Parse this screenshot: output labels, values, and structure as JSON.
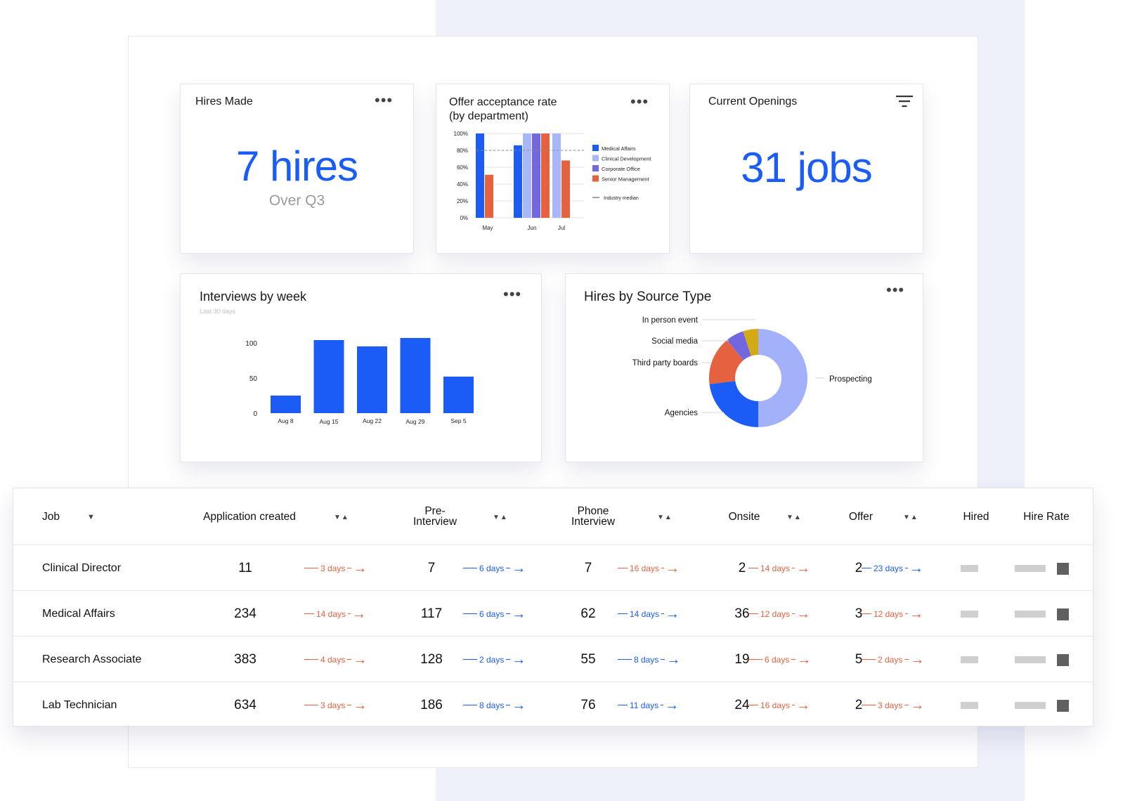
{
  "hires_card": {
    "title": "Hires Made",
    "menu_icon": "more-horizontal-icon",
    "value": "7 hires",
    "caption": "Over Q3"
  },
  "offer_card": {
    "title_line1": "Offer acceptance rate",
    "title_line2": "(by department)",
    "menu_icon": "more-horizontal-icon"
  },
  "openings_card": {
    "title": "Current Openings",
    "filter_icon": "filter-icon",
    "value": "31 jobs"
  },
  "interviews_card": {
    "title": "Interviews by week",
    "subtitle": "Last 30 days",
    "menu_icon": "more-horizontal-icon"
  },
  "source_card": {
    "title": "Hires by Source Type",
    "menu_icon": "more-horizontal-icon"
  },
  "chart_data": [
    {
      "type": "bar",
      "categories": [
        "May",
        "Jun",
        "Jul"
      ],
      "series": [
        {
          "name": "Medical Affairs",
          "color": "#1a5cf5",
          "values": [
            100,
            86,
            null
          ]
        },
        {
          "name": "Clinical Development",
          "color": "#a9b6f7",
          "values": [
            null,
            100,
            100
          ]
        },
        {
          "name": "Corporate Office",
          "color": "#7367e0",
          "values": [
            null,
            100,
            null
          ]
        },
        {
          "name": "Senior Management",
          "color": "#e4623f",
          "values": [
            51,
            100,
            68
          ]
        }
      ],
      "reference_line": {
        "name": "Industry median",
        "value": 80
      },
      "ylim": [
        0,
        100
      ],
      "yticks": [
        "0%",
        "20%",
        "40%",
        "60%",
        "80%",
        "100%"
      ],
      "legend": "right"
    },
    {
      "type": "bar",
      "categories": [
        "Aug 8",
        "Aug 15",
        "Aug 22",
        "Aug 29",
        "Sep 5"
      ],
      "values": [
        25,
        104,
        95,
        107,
        52
      ],
      "color": "#1a5cf5",
      "ylim": [
        0,
        110
      ],
      "yticks": [
        "0",
        "50",
        "100"
      ]
    },
    {
      "type": "pie",
      "donut": true,
      "slices": [
        {
          "label": "Prospecting",
          "value": 50,
          "color": "#a3b1fb"
        },
        {
          "label": "Agencies",
          "value": 23,
          "color": "#1a5cf5"
        },
        {
          "label": "Third party boards",
          "value": 16,
          "color": "#e4623f"
        },
        {
          "label": "Social media",
          "value": 6,
          "color": "#7367e0"
        },
        {
          "label": "In person event",
          "value": 5,
          "color": "#d4aa14"
        }
      ]
    }
  ],
  "table": {
    "headers": {
      "job": "Job",
      "app": "Application created",
      "pre1": "Pre-",
      "pre2": "Interview",
      "phone1": "Phone",
      "phone2": "Interview",
      "onsite": "Onsite",
      "offer": "Offer",
      "hired": "Hired",
      "hire_rate": "Hire Rate"
    },
    "rows": [
      {
        "job": "Clinical Director",
        "app": "11",
        "d1": "3 days",
        "pre": "7",
        "d2": "6 days",
        "phone": "7",
        "d3": "16 days",
        "onsite": "2",
        "d4": "14 days",
        "offer": "2",
        "d5": "23 days"
      },
      {
        "job": "Medical Affairs",
        "app": "234",
        "d1": "14 days",
        "pre": "117",
        "d2": "6 days",
        "phone": "62",
        "d3": "14 days",
        "onsite": "36",
        "d4": "12 days",
        "offer": "3",
        "d5": "12 days"
      },
      {
        "job": "Research Associate",
        "app": "383",
        "d1": "4 days",
        "pre": "128",
        "d2": "2 days",
        "phone": "55",
        "d3": "8 days",
        "onsite": "19",
        "d4": "6 days",
        "offer": "5",
        "d5": "2 days"
      },
      {
        "job": "Lab Technician",
        "app": "634",
        "d1": "3 days",
        "pre": "186",
        "d2": "8 days",
        "phone": "76",
        "d3": "11 days",
        "onsite": "24",
        "d4": "16 days",
        "offer": "2",
        "d5": "3 days"
      }
    ],
    "duration_colors": {
      "d1": "orange",
      "d2": "blue",
      "d3": "orange-blue",
      "d4": "orange",
      "d5": "mixed"
    }
  }
}
